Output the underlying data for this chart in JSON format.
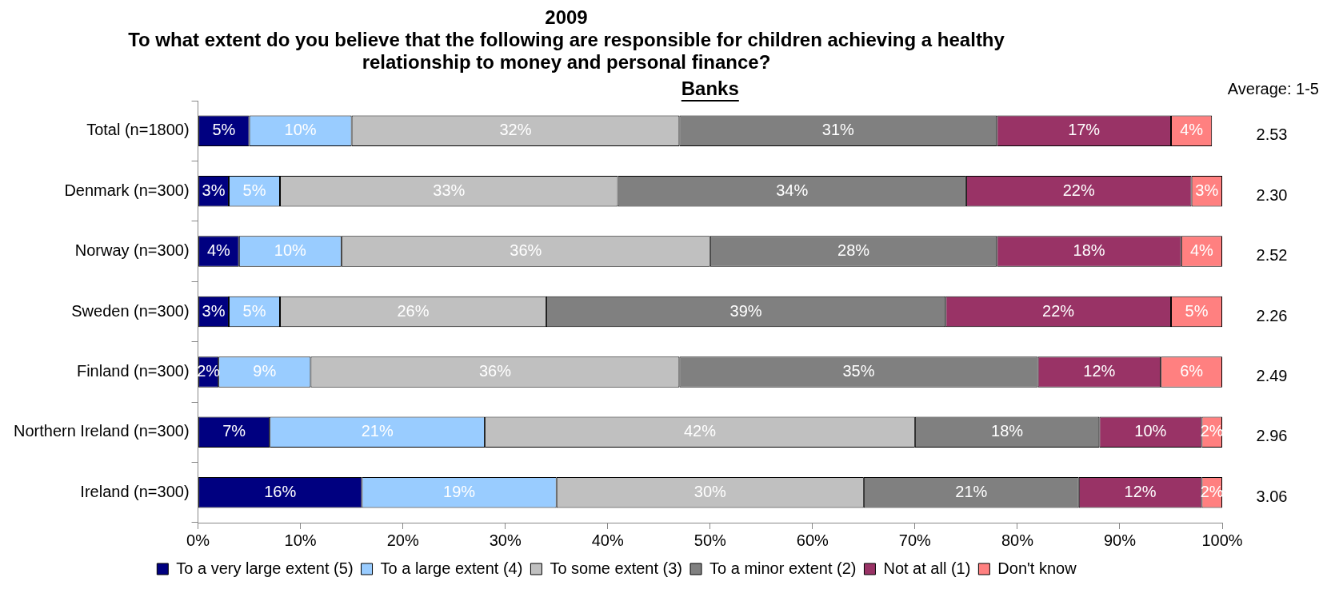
{
  "chart_data": {
    "type": "bar",
    "orientation": "horizontal",
    "stacked": true,
    "title": "2009",
    "subtitle": "To what extent do you believe that the following are responsible for children achieving a healthy relationship to money and personal finance?",
    "categories": [
      "Total (n=1800)",
      "Denmark (n=300)",
      "Norway (n=300)",
      "Sweden (n=300)",
      "Finland (n=300)",
      "Northern Ireland (n=300)",
      "Ireland (n=300)"
    ],
    "series": [
      {
        "name": "To a very large extent (5)",
        "color": "#000080",
        "values": [
          5,
          3,
          4,
          3,
          2,
          7,
          16
        ],
        "value_labels": [
          "5%",
          "3%",
          "4%",
          "3%",
          "2%",
          "7%",
          "16%"
        ]
      },
      {
        "name": "To a large extent (4)",
        "color": "#99ccff",
        "values": [
          10,
          5,
          10,
          5,
          9,
          21,
          19
        ],
        "value_labels": [
          "10%",
          "5%",
          "10%",
          "5%",
          "9%",
          "21%",
          "19%"
        ]
      },
      {
        "name": "To some extent (3)",
        "color": "#c0c0c0",
        "values": [
          32,
          33,
          36,
          26,
          36,
          42,
          30
        ],
        "value_labels": [
          "32%",
          "33%",
          "36%",
          "26%",
          "36%",
          "42%",
          "30%"
        ]
      },
      {
        "name": "To a minor extent (2)",
        "color": "#808080",
        "values": [
          31,
          34,
          28,
          39,
          35,
          18,
          21
        ],
        "value_labels": [
          "31%",
          "34%",
          "28%",
          "39%",
          "35%",
          "18%",
          "21%"
        ]
      },
      {
        "name": "Not at all (1)",
        "color": "#993366",
        "values": [
          17,
          22,
          18,
          22,
          12,
          10,
          12
        ],
        "value_labels": [
          "17%",
          "22%",
          "18%",
          "22%",
          "12%",
          "10%",
          "12%"
        ]
      },
      {
        "name": "Don't know",
        "color": "#ff8080",
        "values": [
          4,
          3,
          4,
          5,
          6,
          2,
          2
        ],
        "value_labels": [
          "4%",
          "3%",
          "4%",
          "5%",
          "6%",
          "2%",
          "2%"
        ]
      }
    ],
    "xlim": [
      0,
      100
    ],
    "xticks": [
      {
        "value": 0,
        "label": "0%"
      },
      {
        "value": 10,
        "label": "10%"
      },
      {
        "value": 20,
        "label": "20%"
      },
      {
        "value": 30,
        "label": "30%"
      },
      {
        "value": 40,
        "label": "40%"
      },
      {
        "value": 50,
        "label": "50%"
      },
      {
        "value": 60,
        "label": "60%"
      },
      {
        "value": 70,
        "label": "70%"
      },
      {
        "value": 80,
        "label": "80%"
      },
      {
        "value": 90,
        "label": "90%"
      },
      {
        "value": 100,
        "label": "100%"
      }
    ],
    "grid": false,
    "legend": "bottom",
    "annotations": [
      "Banks",
      "Average: 1-5",
      "2.53",
      "2.30",
      "2.52",
      "2.26",
      "2.49",
      "2.96",
      "3.06"
    ]
  }
}
